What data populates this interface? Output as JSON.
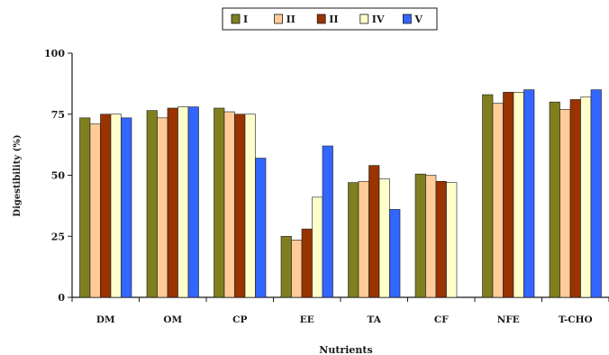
{
  "chart_data": {
    "type": "bar",
    "title": "",
    "xlabel": "Nutrients",
    "ylabel": "Digestibility (%)",
    "ylim": [
      0,
      100
    ],
    "yticks": [
      0,
      25,
      50,
      75,
      100
    ],
    "grid": false,
    "legend_position": "top-center",
    "categories": [
      "DM",
      "OM",
      "CP",
      "EE",
      "TA",
      "CF",
      "NFE",
      "T-CHO"
    ],
    "series": [
      {
        "name": "I",
        "color": "#7f7f1f",
        "values": [
          73.5,
          76.5,
          77.5,
          25.0,
          47.0,
          50.5,
          83.0,
          80.0
        ]
      },
      {
        "name": "II",
        "color": "#ffcc99",
        "values": [
          71.0,
          73.5,
          76.0,
          23.5,
          47.5,
          50.0,
          79.5,
          77.0
        ]
      },
      {
        "name": "II",
        "color": "#993300",
        "values": [
          75.0,
          77.5,
          75.0,
          28.0,
          54.0,
          47.5,
          84.0,
          81.0
        ]
      },
      {
        "name": "IV",
        "color": "#ffffcc",
        "values": [
          75.0,
          78.0,
          75.0,
          41.0,
          48.5,
          47.0,
          84.0,
          82.0
        ]
      },
      {
        "name": "V",
        "color": "#3366ff",
        "values": [
          73.5,
          78.0,
          57.0,
          62.0,
          36.0,
          null,
          85.0,
          85.0
        ]
      }
    ]
  }
}
